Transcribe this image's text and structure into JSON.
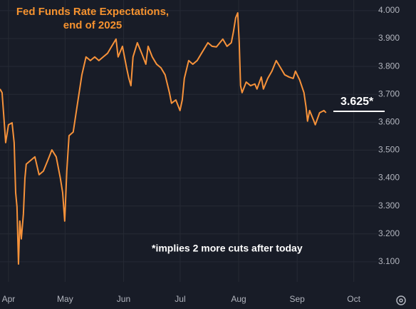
{
  "chart_data": {
    "type": "line",
    "title": [
      "Fed Funds Rate Expectations,",
      "end of 2025"
    ],
    "annotations": [
      "3.625*",
      "*implies 2 more cuts after today"
    ],
    "color": "#f7923a",
    "grid": true,
    "x": [
      -4.5,
      -3.4,
      -2.3,
      -1.5,
      0,
      1.9,
      3,
      3.8,
      4.5,
      5.3,
      6,
      6.8,
      7.9,
      8.7,
      9.4,
      11.7,
      14,
      16.2,
      18.5,
      20.8,
      23,
      25.3,
      27.5,
      28.7,
      29.8,
      30.9,
      32.1,
      34.3,
      36.6,
      38.9,
      41.1,
      43.4,
      45.7,
      47.9,
      50.2,
      52.5,
      54.7,
      57,
      58.1,
      60.4,
      62.6,
      63.8,
      64.9,
      66,
      68.3,
      70.6,
      72.8,
      74,
      76.2,
      78.5,
      80.8,
      83,
      85.3,
      86.4,
      88.7,
      90.9,
      92.1,
      93.2,
      95.5,
      97.7,
      100,
      102.3,
      105.7,
      107.9,
      110.2,
      113.6,
      115.8,
      118.1,
      119.2,
      120.4,
      121.5,
      122.3,
      123,
      123.8,
      126,
      128.3,
      130.6,
      131.7,
      134,
      135.1,
      137.4,
      139.6,
      141.9,
      144.2,
      146.4,
      148.7,
      150.9,
      152.1,
      154.3,
      156.6,
      157.7,
      158.5,
      159.6,
      161.9,
      162.6,
      164.9,
      167.2,
      168.3
    ],
    "values": [
      3.719,
      3.706,
      3.604,
      3.527,
      3.591,
      3.598,
      3.527,
      3.348,
      3.297,
      3.092,
      3.246,
      3.182,
      3.271,
      3.399,
      3.45,
      3.463,
      3.476,
      3.412,
      3.425,
      3.463,
      3.501,
      3.476,
      3.399,
      3.348,
      3.246,
      3.425,
      3.552,
      3.565,
      3.668,
      3.77,
      3.834,
      3.821,
      3.834,
      3.821,
      3.834,
      3.847,
      3.872,
      3.898,
      3.834,
      3.872,
      3.795,
      3.757,
      3.731,
      3.834,
      3.885,
      3.847,
      3.808,
      3.872,
      3.834,
      3.808,
      3.795,
      3.77,
      3.706,
      3.668,
      3.68,
      3.642,
      3.68,
      3.757,
      3.821,
      3.808,
      3.821,
      3.847,
      3.885,
      3.872,
      3.87,
      3.898,
      3.872,
      3.885,
      3.923,
      3.974,
      3.992,
      3.885,
      3.731,
      3.706,
      3.744,
      3.731,
      3.737,
      3.719,
      3.762,
      3.719,
      3.757,
      3.783,
      3.821,
      3.795,
      3.77,
      3.762,
      3.757,
      3.783,
      3.752,
      3.706,
      3.655,
      3.604,
      3.642,
      3.604,
      3.591,
      3.634,
      3.642,
      3.634
    ],
    "xlim": [
      -4.5,
      195.6
    ],
    "xticks": [
      {
        "value": 0,
        "label": "Apr"
      },
      {
        "value": 30,
        "label": "May"
      },
      {
        "value": 61,
        "label": "Jun"
      },
      {
        "value": 91,
        "label": "Jul"
      },
      {
        "value": 122,
        "label": "Aug"
      },
      {
        "value": 153,
        "label": "Sep"
      },
      {
        "value": 183,
        "label": "Oct"
      }
    ],
    "ylim": [
      3.028,
      4.038
    ],
    "yticks": [
      {
        "value": 3.1,
        "label": "3.100"
      },
      {
        "value": 3.2,
        "label": "3.200"
      },
      {
        "value": 3.3,
        "label": "3.300"
      },
      {
        "value": 3.4,
        "label": "3.400"
      },
      {
        "value": 3.5,
        "label": "3.500"
      },
      {
        "value": 3.6,
        "label": "3.600"
      },
      {
        "value": 3.7,
        "label": "3.700"
      },
      {
        "value": 3.8,
        "label": "3.800"
      },
      {
        "value": 3.9,
        "label": "3.900"
      },
      {
        "value": 4,
        "label": "4.000"
      }
    ]
  }
}
